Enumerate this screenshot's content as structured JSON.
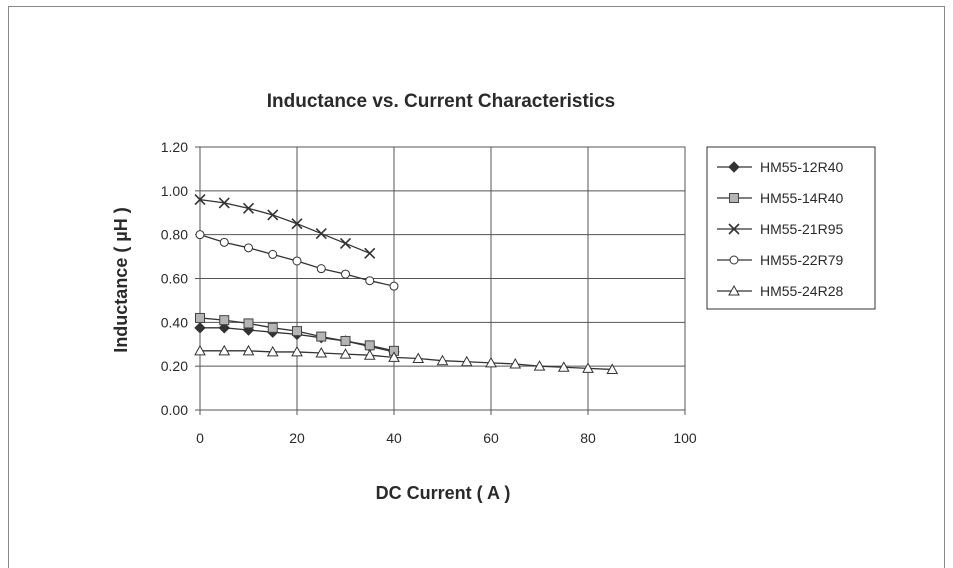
{
  "chart_data": {
    "type": "line",
    "title": "Inductance vs. Current Characteristics",
    "xlabel": "DC Current ( A )",
    "ylabel": "Inductance ( µH )",
    "xlim": [
      0,
      100
    ],
    "ylim": [
      0,
      1.2
    ],
    "xticks": [
      "0",
      "20",
      "40",
      "60",
      "80",
      "100"
    ],
    "yticks": [
      "0.00",
      "0.20",
      "0.40",
      "0.60",
      "0.80",
      "1.00",
      "1.20"
    ],
    "grid": true,
    "legend_position": "right",
    "series": [
      {
        "name": "HM55-12R40",
        "marker": "diamond",
        "x": [
          0,
          5,
          10,
          15,
          20,
          25,
          30,
          35,
          40
        ],
        "y": [
          0.375,
          0.375,
          0.365,
          0.355,
          0.345,
          0.33,
          0.315,
          0.29,
          0.265
        ]
      },
      {
        "name": "HM55-14R40",
        "marker": "square",
        "x": [
          0,
          5,
          10,
          15,
          20,
          25,
          30,
          35,
          40
        ],
        "y": [
          0.42,
          0.41,
          0.395,
          0.375,
          0.36,
          0.335,
          0.315,
          0.295,
          0.27
        ]
      },
      {
        "name": "HM55-21R95",
        "marker": "x",
        "x": [
          0,
          5,
          10,
          15,
          20,
          25,
          30,
          35
        ],
        "y": [
          0.96,
          0.945,
          0.92,
          0.89,
          0.85,
          0.805,
          0.76,
          0.715
        ]
      },
      {
        "name": "HM55-22R79",
        "marker": "circle",
        "x": [
          0,
          5,
          10,
          15,
          20,
          25,
          30,
          35,
          40
        ],
        "y": [
          0.8,
          0.765,
          0.74,
          0.71,
          0.68,
          0.645,
          0.62,
          0.59,
          0.565
        ]
      },
      {
        "name": "HM55-24R28",
        "marker": "triangle",
        "x": [
          0,
          5,
          10,
          15,
          20,
          25,
          30,
          35,
          40,
          45,
          50,
          55,
          60,
          65,
          70,
          75,
          80,
          85
        ],
        "y": [
          0.27,
          0.27,
          0.27,
          0.265,
          0.265,
          0.26,
          0.255,
          0.25,
          0.24,
          0.235,
          0.225,
          0.22,
          0.215,
          0.21,
          0.2,
          0.195,
          0.19,
          0.185
        ]
      }
    ]
  }
}
